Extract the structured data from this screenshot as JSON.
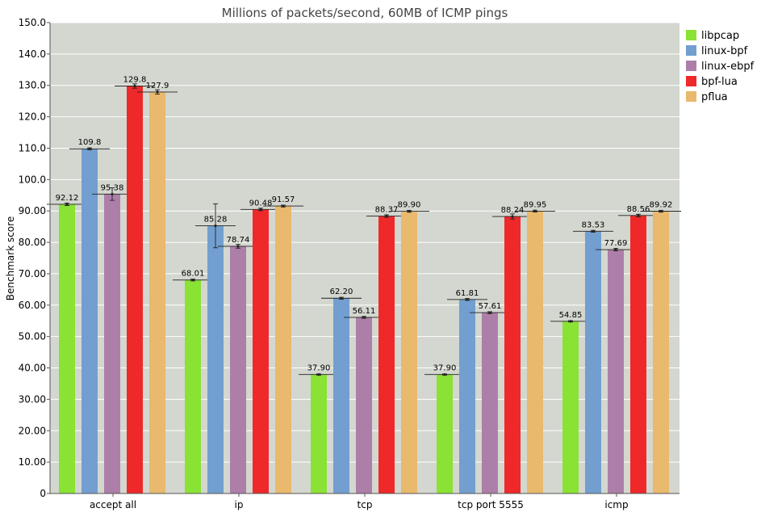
{
  "chart_data": {
    "type": "bar",
    "title": "Millions of packets/second, 60MB of ICMP pings",
    "xlabel": "",
    "ylabel": "Benchmark score",
    "ylim": [
      0,
      150
    ],
    "yticks": [
      "0",
      "10.00",
      "20.00",
      "30.00",
      "40.00",
      "50.00",
      "60.00",
      "70.00",
      "80.00",
      "90.00",
      "100.0",
      "110.0",
      "120.0",
      "130.0",
      "140.0",
      "150.0"
    ],
    "grid": true,
    "legend_position": "top-right",
    "categories": [
      "accept all",
      "ip",
      "tcp",
      "tcp port 5555",
      "icmp"
    ],
    "series": [
      {
        "name": "libpcap",
        "color": "#8ae234",
        "values": [
          92.12,
          68.01,
          37.9,
          37.9,
          54.85
        ],
        "labels": [
          "92.12",
          "68.01",
          "37.90",
          "37.90",
          "54.85"
        ]
      },
      {
        "name": "linux-bpf",
        "color": "#729fcf",
        "values": [
          109.8,
          85.28,
          62.2,
          61.81,
          83.53
        ],
        "labels": [
          "109.8",
          "85.28",
          "62.20",
          "61.81",
          "83.53"
        ]
      },
      {
        "name": "linux-ebpf",
        "color": "#ad7fa8",
        "values": [
          95.38,
          78.74,
          56.11,
          57.61,
          77.69
        ],
        "labels": [
          "95.38",
          "78.74",
          "56.11",
          "57.61",
          "77.69"
        ]
      },
      {
        "name": "bpf-lua",
        "color": "#ef2929",
        "values": [
          129.8,
          90.48,
          88.37,
          88.24,
          88.56
        ],
        "labels": [
          "129.8",
          "90.48",
          "88.37",
          "88.24",
          "88.56"
        ]
      },
      {
        "name": "pflua",
        "color": "#e9b96e",
        "values": [
          127.9,
          91.57,
          89.9,
          89.95,
          89.92
        ],
        "labels": [
          "127.9",
          "91.57",
          "89.90",
          "89.95",
          "89.92"
        ]
      }
    ],
    "errors": [
      [
        0.4,
        0.3,
        0.2,
        0.2,
        0.2
      ],
      [
        0.3,
        7.0,
        0.3,
        0.3,
        0.3
      ],
      [
        2.0,
        0.6,
        0.3,
        0.3,
        0.4
      ],
      [
        0.7,
        0.4,
        0.4,
        0.8,
        0.4
      ],
      [
        0.7,
        0.3,
        0.3,
        0.3,
        0.3
      ]
    ],
    "colors": {
      "plot_background": "#d3d7cf",
      "gridline": "#ffffff",
      "axis": "#555555"
    }
  }
}
